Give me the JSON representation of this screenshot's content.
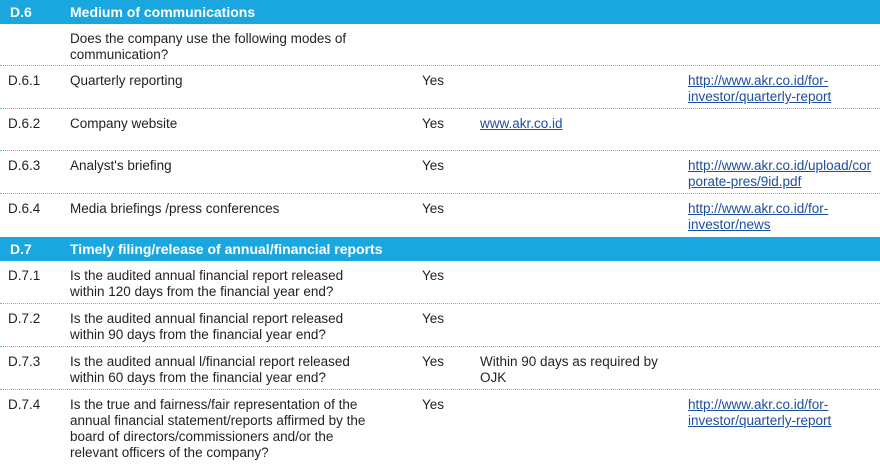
{
  "sections": {
    "d6": {
      "code": "D.6",
      "title": "Medium of communications",
      "intro": "Does the company use the following modes of communication?",
      "rows": [
        {
          "code": "D.6.1",
          "question": "Quarterly reporting",
          "answer": "Yes",
          "remark": "",
          "source": "http://www.akr.co.id/for-investor/quarterly-report"
        },
        {
          "code": "D.6.2",
          "question": "Company website",
          "answer": "Yes",
          "remark": "www.akr.co.id",
          "source": ""
        },
        {
          "code": "D.6.3",
          "question": "Analyst's briefing",
          "answer": "Yes",
          "remark": "",
          "source": "http://www.akr.co.id/upload/corporate-pres/9id.pdf"
        },
        {
          "code": "D.6.4",
          "question": "Media briefings /press conferences",
          "answer": "Yes",
          "remark": "",
          "source": "http://www.akr.co.id/for-investor/news"
        }
      ]
    },
    "d7": {
      "code": "D.7",
      "title": "Timely filing/release of annual/financial reports",
      "rows": [
        {
          "code": "D.7.1",
          "question": "Is the audited annual  financial report released within 120 days from the financial year end?",
          "answer": "Yes",
          "remark": "",
          "source": ""
        },
        {
          "code": "D.7.2",
          "question": "Is the audited annual  financial report released within 90 days from the financial year end?",
          "answer": "Yes",
          "remark": "",
          "source": ""
        },
        {
          "code": "D.7.3",
          "question": "Is the audited annual l/financial report released within 60 days from the financial year end?",
          "answer": "Yes",
          "remark": "Within 90 days as required by OJK",
          "source": ""
        },
        {
          "code": "D.7.4",
          "question": "Is the true and fairness/fair representation of the annual  financial statement/reports affirmed by the board of directors/commissioners and/or the relevant officers of the company?",
          "answer": "Yes",
          "remark": "",
          "source": "http://www.akr.co.id/for-investor/quarterly-report"
        }
      ]
    }
  }
}
